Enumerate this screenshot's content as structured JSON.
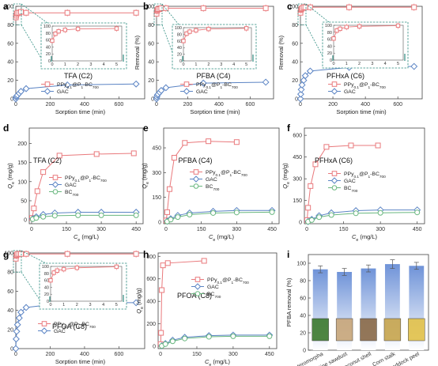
{
  "colors": {
    "pp": "#e9797c",
    "gac": "#5b84c4",
    "bc": "#69b77f",
    "inset_box": "#2e8c80",
    "bar": "#b9cff0",
    "bar_top": "#6f93d8"
  },
  "chart_data": [
    {
      "id": "a",
      "panel_label": "a",
      "type": "line",
      "title": "TFA (C2)",
      "xlabel": "Sorption time (min)",
      "ylabel": "Removal (%)",
      "xlim": [
        0,
        750
      ],
      "ylim": [
        0,
        100
      ],
      "xticks": [
        "0",
        "200",
        "400",
        "600"
      ],
      "yticks": [
        "0",
        "20",
        "40",
        "60",
        "80",
        "100"
      ],
      "series": [
        {
          "name": "PPy0.1@P1-BC700",
          "marker": "square",
          "color": "pp",
          "x": [
            0,
            2,
            5,
            10,
            20,
            30,
            60,
            300,
            700
          ],
          "y": [
            88,
            90,
            92,
            93,
            93,
            94,
            93,
            93,
            93
          ]
        },
        {
          "name": "GAC",
          "marker": "diamond",
          "color": "gac",
          "x": [
            0,
            2,
            5,
            10,
            20,
            30,
            60,
            300,
            700
          ],
          "y": [
            0,
            2,
            3,
            4,
            6,
            8,
            11,
            15,
            16
          ]
        }
      ],
      "inset": {
        "xlim": [
          0,
          5.4
        ],
        "ylim": [
          0,
          100
        ],
        "xticks": [
          "0",
          "1",
          "2",
          "3",
          "4",
          "5"
        ],
        "yticks": [
          "0",
          "20",
          "40",
          "60",
          "80",
          "100"
        ],
        "x": [
          0,
          0.25,
          0.5,
          1,
          2,
          5
        ],
        "y": [
          58,
          78,
          85,
          89,
          92,
          93
        ]
      }
    },
    {
      "id": "b",
      "panel_label": "b",
      "type": "line",
      "title": "PFBA (C4)",
      "xlabel": "Sorption time (min)",
      "ylabel": "Removal (%)",
      "xlim": [
        0,
        750
      ],
      "ylim": [
        0,
        100
      ],
      "xticks": [
        "0",
        "200",
        "400",
        "600"
      ],
      "yticks": [
        "0",
        "20",
        "40",
        "60",
        "80",
        "100"
      ],
      "series": [
        {
          "name": "PPy0.1@P1-BC700",
          "marker": "square",
          "color": "pp",
          "x": [
            0,
            2,
            5,
            10,
            20,
            30,
            60,
            300,
            700
          ],
          "y": [
            92,
            95,
            96,
            97,
            97,
            98,
            98,
            98,
            98
          ]
        },
        {
          "name": "GAC",
          "marker": "diamond",
          "color": "gac",
          "x": [
            0,
            2,
            5,
            10,
            20,
            30,
            60,
            300,
            700
          ],
          "y": [
            0,
            2,
            4,
            5,
            7,
            9,
            12,
            17,
            18
          ]
        }
      ],
      "inset": {
        "xlim": [
          0,
          5.4
        ],
        "ylim": [
          0,
          100
        ],
        "xticks": [
          "0",
          "1",
          "2",
          "3",
          "4",
          "5"
        ],
        "yticks": [
          "0",
          "20",
          "40",
          "60",
          "80",
          "100"
        ],
        "x": [
          0,
          0.25,
          0.5,
          1,
          2,
          5
        ],
        "y": [
          60,
          82,
          88,
          92,
          96,
          98
        ]
      }
    },
    {
      "id": "c",
      "panel_label": "c",
      "type": "line",
      "title": "PFHxA (C6)",
      "xlabel": "Sorption time (min)",
      "ylabel": "Removal (%)",
      "xlim": [
        0,
        750
      ],
      "ylim": [
        0,
        100
      ],
      "xticks": [
        "0",
        "200",
        "400",
        "600"
      ],
      "yticks": [
        "0",
        "20",
        "40",
        "60",
        "80",
        "100"
      ],
      "series": [
        {
          "name": "PPy0.1@P1-BC700",
          "marker": "square",
          "color": "pp",
          "x": [
            0,
            2,
            5,
            10,
            20,
            30,
            60,
            300,
            700
          ],
          "y": [
            93,
            96,
            97,
            98,
            99,
            99,
            99,
            99,
            99
          ]
        },
        {
          "name": "GAC",
          "marker": "diamond",
          "color": "gac",
          "x": [
            0,
            2,
            5,
            10,
            20,
            30,
            60,
            300,
            700
          ],
          "y": [
            0,
            5,
            10,
            15,
            20,
            25,
            30,
            34,
            35
          ]
        }
      ],
      "inset": {
        "xlim": [
          0,
          5.4
        ],
        "ylim": [
          0,
          100
        ],
        "xticks": [
          "0",
          "1",
          "2",
          "3",
          "4",
          "5"
        ],
        "yticks": [
          "0",
          "20",
          "40",
          "60",
          "80",
          "100"
        ],
        "x": [
          0,
          0.25,
          0.5,
          1,
          2,
          5
        ],
        "y": [
          62,
          85,
          90,
          95,
          97,
          99
        ]
      }
    },
    {
      "id": "d",
      "panel_label": "d",
      "type": "line",
      "title": "TFA (C2)",
      "xlabel": "Ce (mg/L)",
      "ylabel": "Qe (mg/g)",
      "xlim": [
        -10,
        480
      ],
      "ylim": [
        -10,
        240
      ],
      "xticks": [
        "0",
        "150",
        "300",
        "450"
      ],
      "yticks": [
        "0",
        "50",
        "100",
        "150",
        "200"
      ],
      "series": [
        {
          "name": "PPy0.1@P1-BC700",
          "marker": "square",
          "color": "pp",
          "x": [
            2,
            10,
            25,
            50,
            120,
            280,
            440
          ],
          "y": [
            5,
            30,
            75,
            125,
            168,
            172,
            174
          ]
        },
        {
          "name": "GAC",
          "marker": "diamond",
          "color": "gac",
          "x": [
            5,
            20,
            50,
            100,
            200,
            300,
            450
          ],
          "y": [
            3,
            8,
            14,
            18,
            20,
            20,
            20
          ]
        },
        {
          "name": "BC700",
          "marker": "circle",
          "color": "bc",
          "x": [
            5,
            20,
            50,
            100,
            200,
            300,
            450
          ],
          "y": [
            2,
            5,
            8,
            11,
            12,
            12,
            12
          ]
        }
      ]
    },
    {
      "id": "e",
      "panel_label": "e",
      "type": "line",
      "title": "PFBA (C4)",
      "xlabel": "Ce (mg/L)",
      "ylabel": "Qe (mg/g)",
      "xlim": [
        -10,
        480
      ],
      "ylim": [
        -10,
        570
      ],
      "xticks": [
        "0",
        "150",
        "300",
        "450"
      ],
      "yticks": [
        "0",
        "150",
        "300",
        "450"
      ],
      "series": [
        {
          "name": "PPy0.1@P1-BC700",
          "marker": "square",
          "color": "pp",
          "x": [
            1,
            5,
            15,
            35,
            80,
            180,
            300
          ],
          "y": [
            10,
            60,
            200,
            390,
            480,
            490,
            485
          ]
        },
        {
          "name": "GAC",
          "marker": "diamond",
          "color": "gac",
          "x": [
            5,
            20,
            50,
            100,
            200,
            300,
            450
          ],
          "y": [
            5,
            20,
            40,
            55,
            65,
            70,
            70
          ]
        },
        {
          "name": "BC700",
          "marker": "circle",
          "color": "bc",
          "x": [
            5,
            20,
            50,
            100,
            200,
            300,
            450
          ],
          "y": [
            3,
            15,
            30,
            45,
            55,
            58,
            60
          ]
        }
      ]
    },
    {
      "id": "f",
      "panel_label": "f",
      "type": "line",
      "title": "PFHxA (C6)",
      "xlabel": "Ce (mg/L)",
      "ylabel": "Qe (mg/g)",
      "xlim": [
        -10,
        480
      ],
      "ylim": [
        -10,
        650
      ],
      "xticks": [
        "0",
        "150",
        "300",
        "450"
      ],
      "yticks": [
        "0",
        "150",
        "300",
        "450",
        "600"
      ],
      "series": [
        {
          "name": "PPy0.1@P1-BC700",
          "marker": "square",
          "color": "pp",
          "x": [
            1,
            5,
            15,
            35,
            80,
            180,
            290
          ],
          "y": [
            15,
            100,
            250,
            400,
            520,
            530,
            530
          ]
        },
        {
          "name": "GAC",
          "marker": "diamond",
          "color": "gac",
          "x": [
            5,
            20,
            50,
            100,
            200,
            300,
            450
          ],
          "y": [
            5,
            20,
            45,
            65,
            80,
            85,
            85
          ]
        },
        {
          "name": "BC700",
          "marker": "circle",
          "color": "bc",
          "x": [
            5,
            20,
            50,
            100,
            200,
            300,
            450
          ],
          "y": [
            4,
            15,
            35,
            50,
            62,
            65,
            68
          ]
        }
      ]
    },
    {
      "id": "g",
      "panel_label": "g",
      "type": "line",
      "title": "PFOA (C8)",
      "xlabel": "Sorption time (min)",
      "ylabel": "Removal (%)",
      "xlim": [
        0,
        750
      ],
      "ylim": [
        0,
        100
      ],
      "xticks": [
        "0",
        "200",
        "400",
        "600"
      ],
      "yticks": [
        "0",
        "20",
        "40",
        "60",
        "80",
        "100"
      ],
      "series": [
        {
          "name": "PPy0.1@P1-BC700",
          "marker": "square",
          "color": "pp",
          "x": [
            0,
            2,
            5,
            10,
            20,
            30,
            60,
            300,
            700
          ],
          "y": [
            94,
            97,
            98,
            99,
            99,
            99,
            99,
            99,
            99
          ]
        },
        {
          "name": "GAC",
          "marker": "diamond",
          "color": "gac",
          "x": [
            0,
            2,
            5,
            10,
            20,
            30,
            60,
            300,
            700
          ],
          "y": [
            0,
            10,
            18,
            25,
            32,
            38,
            43,
            48,
            48
          ]
        }
      ],
      "inset": {
        "xlim": [
          0,
          5.4
        ],
        "ylim": [
          0,
          100
        ],
        "xticks": [
          "0",
          "1",
          "2",
          "3",
          "4",
          "5"
        ],
        "yticks": [
          "0",
          "20",
          "40",
          "60",
          "80",
          "100"
        ],
        "x": [
          0,
          0.25,
          0.5,
          1,
          2,
          5
        ],
        "y": [
          60,
          82,
          88,
          92,
          96,
          99
        ]
      }
    },
    {
      "id": "h",
      "panel_label": "h",
      "type": "line",
      "title": "PFOA (C8)",
      "xlabel": "Ce (mg/L)",
      "ylabel": "Qe (mg/g)",
      "xlim": [
        -10,
        480
      ],
      "ylim": [
        -20,
        830
      ],
      "xticks": [
        "0",
        "150",
        "300",
        "450"
      ],
      "yticks": [
        "0",
        "200",
        "400",
        "600",
        "800"
      ],
      "series": [
        {
          "name": "PPy0.1@P1-BC700",
          "marker": "square",
          "color": "pp",
          "x": [
            0.5,
            2,
            5,
            10,
            30,
            180
          ],
          "y": [
            20,
            120,
            500,
            720,
            740,
            760
          ]
        },
        {
          "name": "GAC",
          "marker": "diamond",
          "color": "gac",
          "x": [
            5,
            20,
            50,
            100,
            200,
            300,
            450
          ],
          "y": [
            5,
            25,
            55,
            80,
            95,
            100,
            100
          ]
        },
        {
          "name": "BC700",
          "marker": "circle",
          "color": "bc",
          "x": [
            5,
            20,
            50,
            100,
            200,
            300,
            450
          ],
          "y": [
            4,
            20,
            45,
            70,
            85,
            90,
            90
          ]
        }
      ]
    },
    {
      "id": "i",
      "panel_label": "i",
      "type": "bar",
      "ylabel": "PFBA removal (%)",
      "ylim": [
        0,
        110
      ],
      "yticks": [
        "0",
        "20",
        "40",
        "60",
        "80",
        "100"
      ],
      "categories": [
        "Enteromorpha",
        "Pine sawdust",
        "Coconut shell",
        "Corn stalk",
        "Shaddock peel"
      ],
      "values": [
        93,
        90,
        94,
        99,
        97
      ],
      "errors": [
        4,
        4,
        4,
        5,
        4
      ]
    }
  ]
}
